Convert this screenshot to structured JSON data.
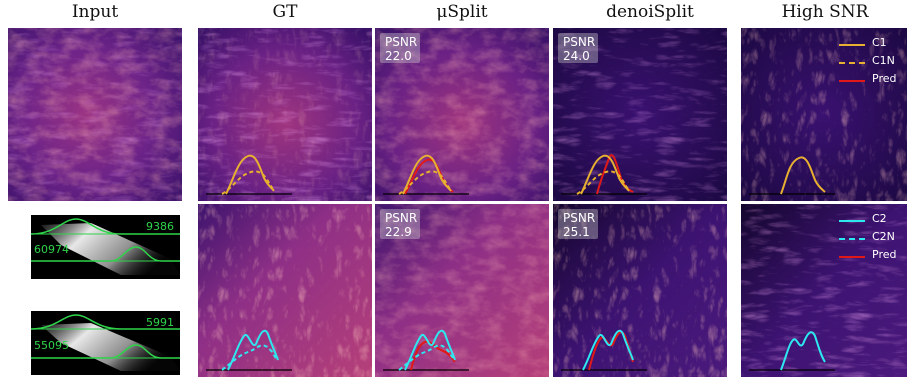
{
  "columns": [
    "Input",
    "GT",
    "μSplit",
    "denoiSplit",
    "High SNR"
  ],
  "psnr_label": "PSNR",
  "psnr": {
    "usplit_top": "22.0",
    "denoisplit_top": "24.0",
    "usplit_bottom": "22.9",
    "denoisplit_bottom": "25.1"
  },
  "legend_top": [
    {
      "label": "C1",
      "style": "solid",
      "color": "#e8b030"
    },
    {
      "label": "C1N",
      "style": "dashed",
      "color": "#e8b030"
    },
    {
      "label": "Pred",
      "style": "solid",
      "color": "#e01818"
    }
  ],
  "legend_bottom": [
    {
      "label": "C2",
      "style": "solid",
      "color": "#2ee8f0"
    },
    {
      "label": "C2N",
      "style": "dashed",
      "color": "#2ee8f0"
    },
    {
      "label": "Pred",
      "style": "solid",
      "color": "#e01818"
    }
  ],
  "histograms": [
    {
      "left_value": "60974",
      "right_value": "9386"
    },
    {
      "left_value": "55095",
      "right_value": "5991"
    }
  ],
  "colors": {
    "magma_dark": "#1b0b3a",
    "magma_mid": "#7a2a8a",
    "magma_bright": "#e2566a",
    "c1": "#e8b030",
    "c2": "#2ee8f0",
    "pred": "#e01818",
    "hist_green": "#2fd44b"
  }
}
